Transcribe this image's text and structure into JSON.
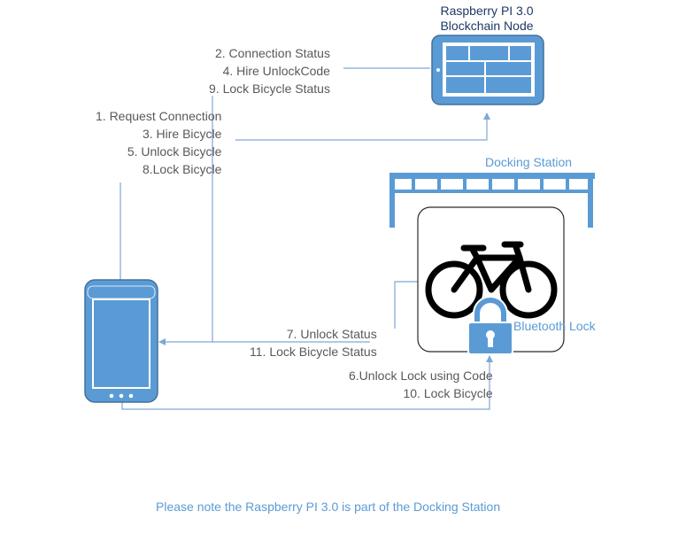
{
  "node": {
    "title_line1": "Raspberry PI 3.0",
    "title_line2": "Blockchain Node"
  },
  "phone_to_node": {
    "line1": "1. Request Connection",
    "line2": "3. Hire Bicycle",
    "line3": "5. Unlock Bicycle",
    "line4": "8.Lock Bicycle"
  },
  "node_to_phone": {
    "line1": "2. Connection Status",
    "line2": "4. Hire UnlockCode",
    "line3": "9. Lock Bicycle Status"
  },
  "docking": {
    "title": "Docking Station",
    "lock_label": "Bluetooth Lock"
  },
  "lock_to_phone": {
    "line1": "7. Unlock Status",
    "line2": "11. Lock Bicycle Status"
  },
  "phone_to_lock": {
    "line1": "6.Unlock Lock using Code",
    "line2": "10. Lock Bicycle"
  },
  "footnote": "Please note the Raspberry PI 3.0 is part of the Docking Station",
  "colors": {
    "device_blue": "#5b9bd5",
    "device_dark": "#41719c",
    "connector": "#7fa7d6",
    "text_gray": "#595959",
    "title_navy": "#1f3864"
  }
}
